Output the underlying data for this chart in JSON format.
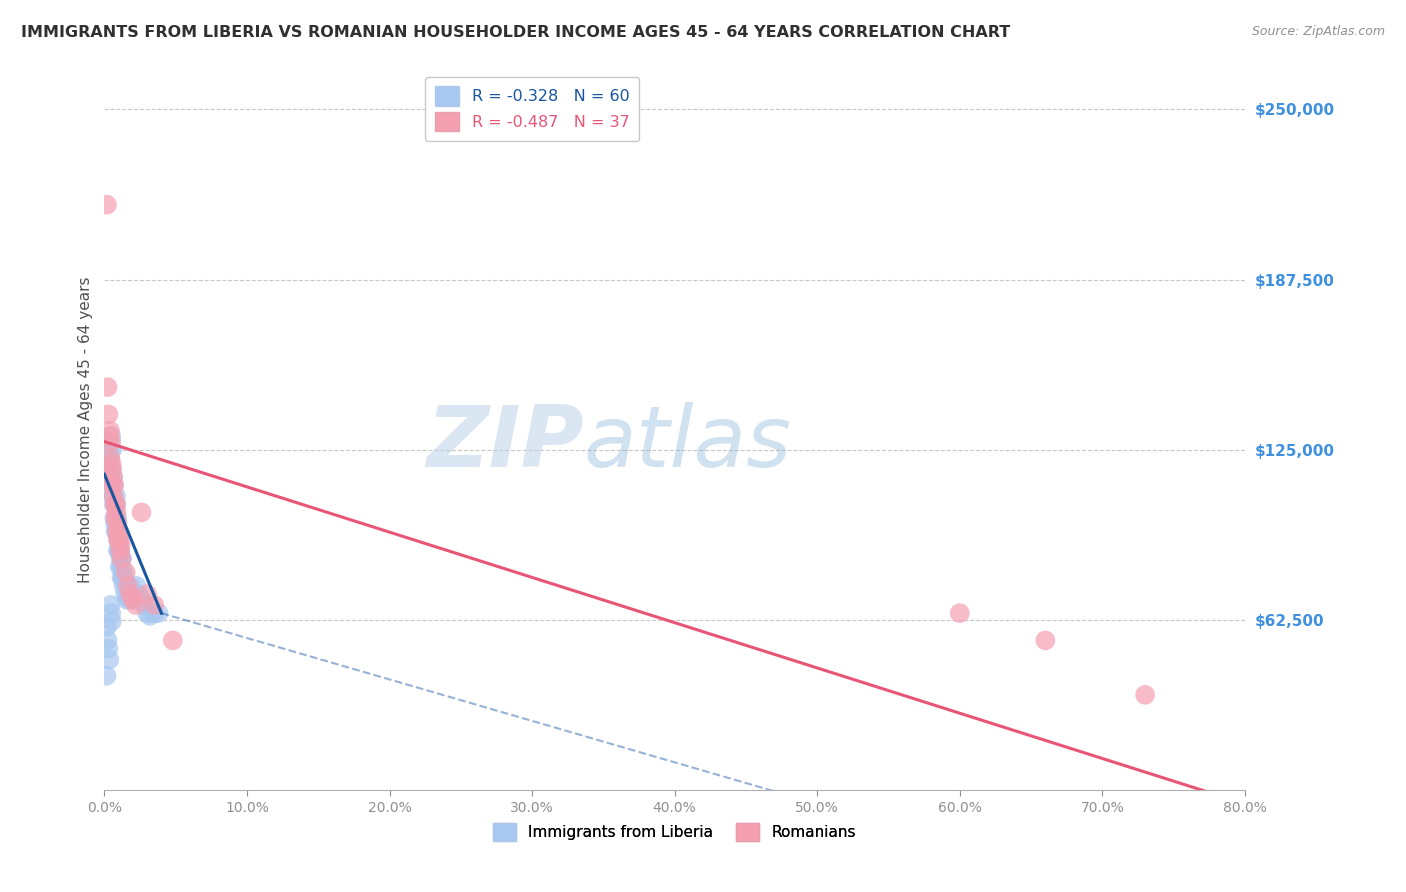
{
  "title": "IMMIGRANTS FROM LIBERIA VS ROMANIAN HOUSEHOLDER INCOME AGES 45 - 64 YEARS CORRELATION CHART",
  "source": "Source: ZipAtlas.com",
  "ylabel": "Householder Income Ages 45 - 64 years",
  "ytick_labels": [
    "$62,500",
    "$125,000",
    "$187,500",
    "$250,000"
  ],
  "ytick_values": [
    62500,
    125000,
    187500,
    250000
  ],
  "ylim": [
    0,
    265000
  ],
  "xlim": [
    0.0,
    0.8
  ],
  "watermark_zip": "ZIP",
  "watermark_atlas": "atlas",
  "legend_line1": "R = -0.328   N = 60",
  "legend_line2": "R = -0.487   N = 37",
  "liberia_color": "#a8c8f0",
  "romanian_color": "#f5a0b0",
  "liberia_line_color": "#1a55a0",
  "romanian_line_color": "#e85575",
  "liberia_scatter": [
    [
      0.0018,
      128000
    ],
    [
      0.0025,
      120000
    ],
    [
      0.003,
      125000
    ],
    [
      0.004,
      122000
    ],
    [
      0.0042,
      110000
    ],
    [
      0.0048,
      130000
    ],
    [
      0.005,
      118000
    ],
    [
      0.0055,
      125000
    ],
    [
      0.006,
      115000
    ],
    [
      0.0062,
      108000
    ],
    [
      0.0065,
      105000
    ],
    [
      0.0068,
      112000
    ],
    [
      0.007,
      100000
    ],
    [
      0.0075,
      98000
    ],
    [
      0.0078,
      95000
    ],
    [
      0.0082,
      108000
    ],
    [
      0.0085,
      105000
    ],
    [
      0.0088,
      95000
    ],
    [
      0.009,
      100000
    ],
    [
      0.0092,
      95000
    ],
    [
      0.0095,
      88000
    ],
    [
      0.0098,
      92000
    ],
    [
      0.01,
      88000
    ],
    [
      0.0105,
      90000
    ],
    [
      0.0108,
      82000
    ],
    [
      0.0112,
      88000
    ],
    [
      0.0115,
      85000
    ],
    [
      0.0118,
      82000
    ],
    [
      0.012,
      78000
    ],
    [
      0.0125,
      85000
    ],
    [
      0.0128,
      78000
    ],
    [
      0.0132,
      80000
    ],
    [
      0.0135,
      75000
    ],
    [
      0.014,
      78000
    ],
    [
      0.0145,
      72000
    ],
    [
      0.015,
      76000
    ],
    [
      0.0155,
      70000
    ],
    [
      0.0162,
      74000
    ],
    [
      0.0168,
      72000
    ],
    [
      0.0175,
      70000
    ],
    [
      0.0182,
      75000
    ],
    [
      0.019,
      72000
    ],
    [
      0.0198,
      70000
    ],
    [
      0.021,
      72000
    ],
    [
      0.0225,
      75000
    ],
    [
      0.024,
      72000
    ],
    [
      0.026,
      70000
    ],
    [
      0.028,
      68000
    ],
    [
      0.03,
      65000
    ],
    [
      0.032,
      64000
    ],
    [
      0.035,
      65000
    ],
    [
      0.038,
      65000
    ],
    [
      0.0018,
      60000
    ],
    [
      0.0022,
      55000
    ],
    [
      0.0028,
      52000
    ],
    [
      0.0035,
      48000
    ],
    [
      0.0015,
      42000
    ],
    [
      0.0042,
      68000
    ],
    [
      0.0048,
      65000
    ],
    [
      0.0052,
      62000
    ]
  ],
  "romanian_scatter": [
    [
      0.0018,
      215000
    ],
    [
      0.0022,
      148000
    ],
    [
      0.0028,
      138000
    ],
    [
      0.0035,
      130000
    ],
    [
      0.004,
      132000
    ],
    [
      0.0042,
      122000
    ],
    [
      0.0048,
      128000
    ],
    [
      0.005,
      120000
    ],
    [
      0.0055,
      118000
    ],
    [
      0.0058,
      112000
    ],
    [
      0.0062,
      115000
    ],
    [
      0.0065,
      108000
    ],
    [
      0.0068,
      112000
    ],
    [
      0.0072,
      105000
    ],
    [
      0.0075,
      100000
    ],
    [
      0.008,
      105000
    ],
    [
      0.0085,
      102000
    ],
    [
      0.0088,
      95000
    ],
    [
      0.0092,
      98000
    ],
    [
      0.0095,
      92000
    ],
    [
      0.01,
      95000
    ],
    [
      0.0105,
      92000
    ],
    [
      0.011,
      88000
    ],
    [
      0.0115,
      90000
    ],
    [
      0.012,
      85000
    ],
    [
      0.015,
      80000
    ],
    [
      0.0165,
      75000
    ],
    [
      0.018,
      72000
    ],
    [
      0.02,
      70000
    ],
    [
      0.022,
      68000
    ],
    [
      0.026,
      102000
    ],
    [
      0.03,
      72000
    ],
    [
      0.035,
      68000
    ],
    [
      0.048,
      55000
    ],
    [
      0.6,
      65000
    ],
    [
      0.66,
      55000
    ],
    [
      0.73,
      35000
    ]
  ],
  "liberia_trend_solid_x0": 0.0,
  "liberia_trend_solid_y0": 116000,
  "liberia_trend_solid_x1": 0.04,
  "liberia_trend_solid_y1": 65000,
  "liberia_trend_dash_x0": 0.04,
  "liberia_trend_dash_y0": 65000,
  "liberia_trend_dash_x1": 0.5,
  "liberia_trend_dash_y1": -5000,
  "romanian_trend_x0": 0.0,
  "romanian_trend_y0": 128000,
  "romanian_trend_x1": 0.8,
  "romanian_trend_y1": -5000,
  "background_color": "#ffffff",
  "grid_color": "#c8c8c8",
  "title_color": "#303030",
  "source_color": "#909090",
  "axis_label_color": "#505050",
  "right_tick_color": "#4090e0",
  "xtick_positions": [
    0.0,
    0.1,
    0.2,
    0.3,
    0.4,
    0.5,
    0.6,
    0.7,
    0.8
  ]
}
